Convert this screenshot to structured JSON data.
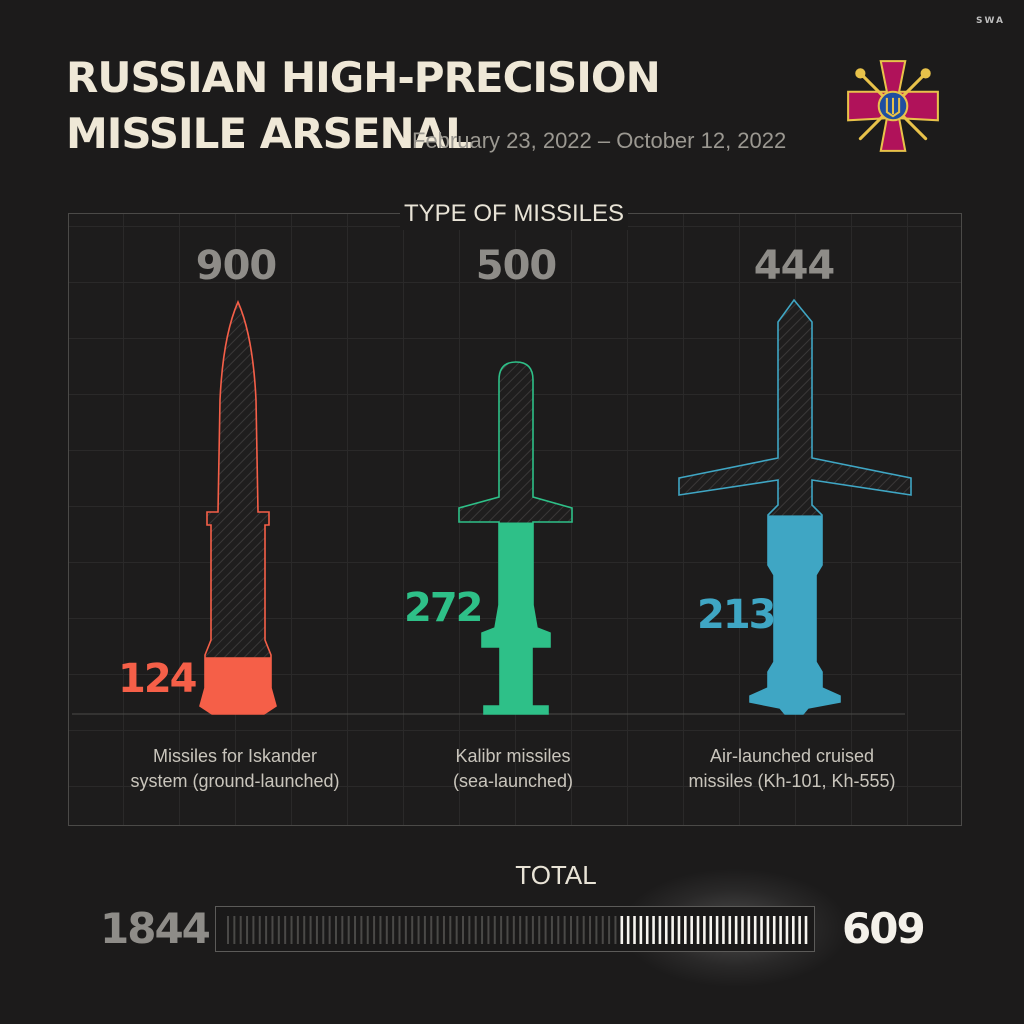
{
  "brand_mark": "SWA",
  "header": {
    "title_line1": "RUSSIAN HIGH-PRECISION",
    "title_line2": "MISSILE ARSENAL",
    "date_range": "February 23, 2022 – October 12, 2022"
  },
  "emblem": {
    "icon": "armed-forces-of-ukraine-emblem-icon"
  },
  "panel": {
    "title": "TYPE OF MISSILES"
  },
  "colors": {
    "iskander": "#f55f48",
    "kalibr": "#2ec088",
    "cruise": "#3fa6c4",
    "max_label": "#8e8c88",
    "background": "#1c1b1b"
  },
  "chart_data": {
    "type": "bar",
    "title": "TYPE OF MISSILES",
    "categories": [
      "Missiles for Iskander system (ground-launched)",
      "Kalibr missiles (sea-launched)",
      "Air-launched cruised missiles (Kh-101, Kh-555)"
    ],
    "label_lines": [
      [
        "Missiles for Iskander",
        "system (ground-launched)"
      ],
      [
        "Kalibr missiles",
        "(sea-launched)"
      ],
      [
        "Air-launched cruised",
        "missiles (Kh-101, Kh-555)"
      ]
    ],
    "max_values": [
      900,
      500,
      444
    ],
    "remaining_values": [
      124,
      272,
      213
    ],
    "icons": [
      "iskander-missile-icon",
      "kalibr-missile-icon",
      "cruise-missile-icon"
    ]
  },
  "total": {
    "label": "TOTAL",
    "total_value": "1844",
    "remaining_value": "609",
    "remaining_fraction": 0.33
  }
}
